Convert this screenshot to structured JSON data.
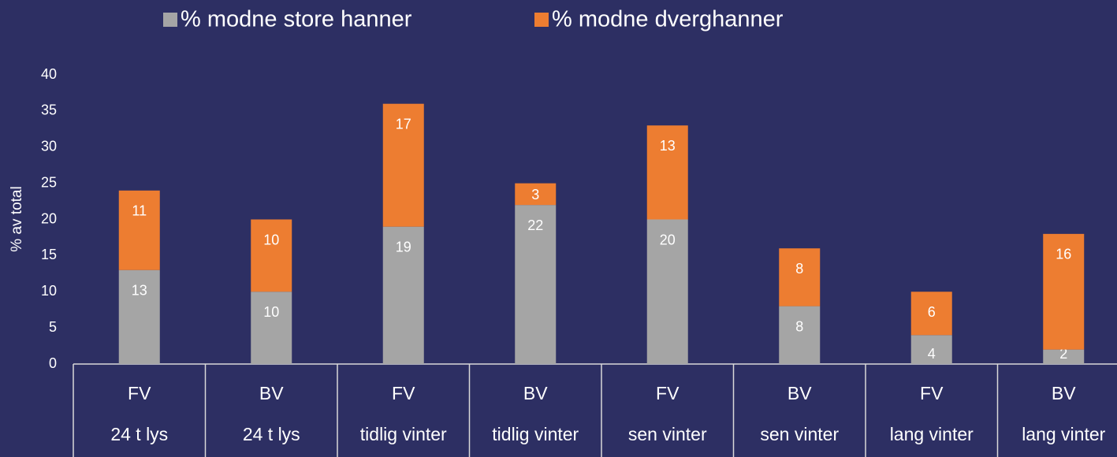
{
  "chart_data": {
    "type": "stacked_bar",
    "ylabel": "% av total",
    "categories": [
      "FV",
      "BV",
      "FV",
      "BV",
      "FV",
      "BV",
      "FV",
      "BV"
    ],
    "category_groups": [
      "24 t lys",
      "24 t lys",
      "tidlig vinter",
      "tidlig vinter",
      "sen vinter",
      "sen vinter",
      "lang vinter",
      "lang vinter"
    ],
    "series": [
      {
        "name": "% modne store hanner",
        "color": "#a5a5a5",
        "values": [
          13,
          10,
          19,
          22,
          20,
          8,
          4,
          2
        ]
      },
      {
        "name": "% modne dverghanner",
        "color": "#ed7d31",
        "values": [
          11,
          10,
          17,
          3,
          13,
          8,
          6,
          16
        ]
      }
    ],
    "ylim": [
      0,
      40
    ],
    "yticks": [
      0,
      5,
      10,
      15,
      20,
      25,
      30,
      35,
      40
    ],
    "grid": false,
    "legend": "top"
  }
}
